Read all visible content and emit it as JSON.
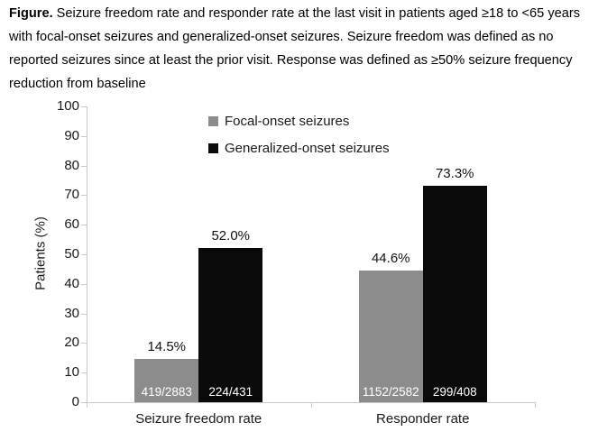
{
  "caption": {
    "label": "Figure.",
    "text": "Seizure freedom rate and responder rate at the last visit in patients aged ≥18 to <65 years with focal-onset seizures and generalized-onset seizures. Seizure freedom was defined as no reported seizures since at least the prior visit. Response was defined as ≥50% seizure frequency reduction from baseline"
  },
  "chart_data": {
    "type": "bar",
    "title": "",
    "xlabel": "",
    "ylabel": "Patients (%)",
    "ylim": [
      0,
      100
    ],
    "yticks": [
      0,
      10,
      20,
      30,
      40,
      50,
      60,
      70,
      80,
      90,
      100
    ],
    "grid": false,
    "legend_position": "top-center-vertical",
    "categories": [
      "Seizure freedom rate",
      "Responder rate"
    ],
    "series": [
      {
        "name": "Focal-onset seizures",
        "color": "#8c8c8c",
        "values": [
          14.5,
          44.6
        ],
        "value_labels": [
          "14.5%",
          "44.6%"
        ],
        "count_labels": [
          "419/2883",
          "1152/2582"
        ]
      },
      {
        "name": "Generalized-onset seizures",
        "color": "#0a0a0a",
        "values": [
          52.0,
          73.3
        ],
        "value_labels": [
          "52.0%",
          "73.3%"
        ],
        "count_labels": [
          "224/431",
          "299/408"
        ]
      }
    ]
  }
}
